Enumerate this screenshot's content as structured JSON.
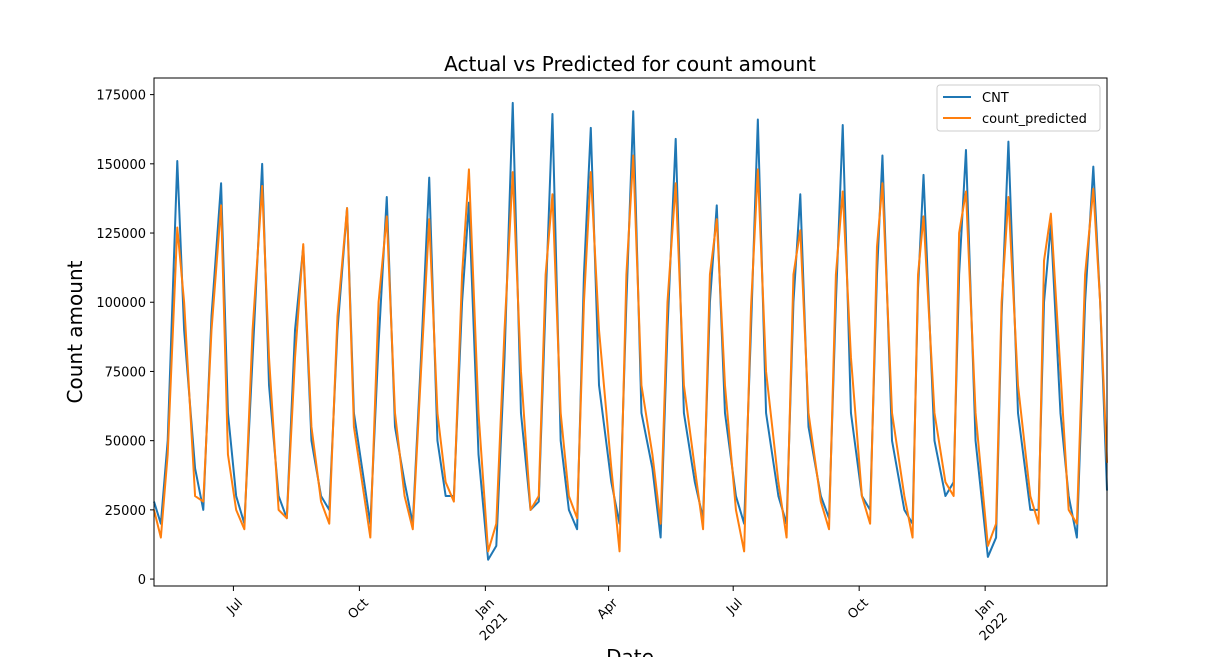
{
  "chart_data": {
    "type": "line",
    "title": "Actual vs Predicted for count amount",
    "xlabel": "Date",
    "ylabel": "Count amount",
    "xlim": [
      "2020-05-04",
      "2022-03-31"
    ],
    "xticks": [
      {
        "value": "2020-07-01",
        "label": "Jul"
      },
      {
        "value": "2020-10-01",
        "label": "Oct"
      },
      {
        "value": "2021-01-01",
        "label": "Jan",
        "year": "2021"
      },
      {
        "value": "2021-04-01",
        "label": "Apr"
      },
      {
        "value": "2021-07-01",
        "label": "Jul"
      },
      {
        "value": "2021-10-01",
        "label": "Oct"
      },
      {
        "value": "2022-01-01",
        "label": "Jan",
        "year": "2022"
      }
    ],
    "ylim": [
      -2500,
      181000
    ],
    "yticks": [
      0,
      25000,
      50000,
      75000,
      100000,
      125000,
      150000,
      175000
    ],
    "legend": "upper right",
    "x": [
      "2020-05-04",
      "2020-05-09",
      "2020-05-14",
      "2020-05-21",
      "2020-05-26",
      "2020-06-03",
      "2020-06-09",
      "2020-06-15",
      "2020-06-22",
      "2020-06-27",
      "2020-07-03",
      "2020-07-09",
      "2020-07-15",
      "2020-07-22",
      "2020-07-27",
      "2020-08-03",
      "2020-08-09",
      "2020-08-15",
      "2020-08-21",
      "2020-08-27",
      "2020-09-03",
      "2020-09-09",
      "2020-09-15",
      "2020-09-22",
      "2020-09-27",
      "2020-10-03",
      "2020-10-09",
      "2020-10-15",
      "2020-10-21",
      "2020-10-27",
      "2020-11-03",
      "2020-11-09",
      "2020-11-15",
      "2020-11-21",
      "2020-11-27",
      "2020-12-03",
      "2020-12-09",
      "2020-12-15",
      "2020-12-20",
      "2020-12-27",
      "2021-01-03",
      "2021-01-09",
      "2021-01-15",
      "2021-01-21",
      "2021-01-27",
      "2021-02-03",
      "2021-02-09",
      "2021-02-14",
      "2021-02-19",
      "2021-02-25",
      "2021-03-03",
      "2021-03-09",
      "2021-03-14",
      "2021-03-19",
      "2021-03-25",
      "2021-04-03",
      "2021-04-09",
      "2021-04-14",
      "2021-04-19",
      "2021-04-25",
      "2021-05-03",
      "2021-05-09",
      "2021-05-14",
      "2021-05-20",
      "2021-05-26",
      "2021-06-03",
      "2021-06-09",
      "2021-06-14",
      "2021-06-19",
      "2021-06-25",
      "2021-07-03",
      "2021-07-09",
      "2021-07-14",
      "2021-07-19",
      "2021-07-25",
      "2021-08-03",
      "2021-08-09",
      "2021-08-14",
      "2021-08-19",
      "2021-08-25",
      "2021-09-03",
      "2021-09-09",
      "2021-09-14",
      "2021-09-19",
      "2021-09-25",
      "2021-10-03",
      "2021-10-09",
      "2021-10-14",
      "2021-10-18",
      "2021-10-25",
      "2021-11-03",
      "2021-11-09",
      "2021-11-13",
      "2021-11-17",
      "2021-11-25",
      "2021-12-03",
      "2021-12-09",
      "2021-12-13",
      "2021-12-18",
      "2021-12-25",
      "2022-01-03",
      "2022-01-09",
      "2022-01-13",
      "2022-01-18",
      "2022-01-25",
      "2022-02-03",
      "2022-02-09",
      "2022-02-13",
      "2022-02-18",
      "2022-02-25",
      "2022-03-03",
      "2022-03-09",
      "2022-03-15",
      "2022-03-21",
      "2022-03-26",
      "2022-03-31"
    ],
    "series": [
      {
        "name": "CNT",
        "color": "#1f77b4",
        "values": [
          28000,
          20000,
          50000,
          151000,
          90000,
          40000,
          25000,
          95000,
          143000,
          60000,
          30000,
          20000,
          80000,
          150000,
          70000,
          30000,
          22000,
          90000,
          120000,
          50000,
          30000,
          25000,
          90000,
          134000,
          60000,
          40000,
          20000,
          85000,
          138000,
          55000,
          35000,
          20000,
          80000,
          145000,
          50000,
          30000,
          30000,
          100000,
          136000,
          45000,
          7000,
          12000,
          80000,
          172000,
          60000,
          25000,
          28000,
          100000,
          168000,
          50000,
          25000,
          18000,
          110000,
          163000,
          70000,
          35000,
          20000,
          100000,
          169000,
          60000,
          40000,
          15000,
          90000,
          159000,
          60000,
          35000,
          22000,
          100000,
          135000,
          60000,
          30000,
          20000,
          90000,
          166000,
          60000,
          30000,
          20000,
          100000,
          139000,
          55000,
          30000,
          22000,
          100000,
          164000,
          60000,
          30000,
          25000,
          110000,
          153000,
          50000,
          25000,
          20000,
          105000,
          146000,
          50000,
          30000,
          35000,
          110000,
          155000,
          50000,
          8000,
          15000,
          95000,
          158000,
          60000,
          25000,
          25000,
          100000,
          128000,
          60000,
          30000,
          15000,
          100000,
          149000,
          100000,
          32000
        ]
      },
      {
        "name": "count_predicted",
        "color": "#ff7f0e",
        "values": [
          25000,
          15000,
          45000,
          127000,
          100000,
          30000,
          28000,
          90000,
          135000,
          45000,
          25000,
          18000,
          90000,
          142000,
          80000,
          25000,
          22000,
          80000,
          121000,
          55000,
          28000,
          20000,
          95000,
          134000,
          55000,
          35000,
          15000,
          100000,
          131000,
          60000,
          30000,
          18000,
          75000,
          130000,
          60000,
          35000,
          28000,
          110000,
          148000,
          60000,
          10000,
          20000,
          90000,
          147000,
          75000,
          25000,
          30000,
          110000,
          139000,
          60000,
          30000,
          22000,
          100000,
          147000,
          90000,
          40000,
          10000,
          110000,
          153000,
          70000,
          45000,
          20000,
          100000,
          143000,
          70000,
          40000,
          18000,
          110000,
          130000,
          70000,
          25000,
          10000,
          98000,
          148000,
          75000,
          35000,
          15000,
          110000,
          126000,
          60000,
          28000,
          18000,
          110000,
          140000,
          80000,
          30000,
          20000,
          120000,
          143000,
          60000,
          30000,
          15000,
          110000,
          131000,
          60000,
          35000,
          30000,
          125000,
          140000,
          60000,
          12000,
          20000,
          100000,
          138000,
          70000,
          30000,
          20000,
          115000,
          132000,
          75000,
          25000,
          20000,
          110000,
          141000,
          100000,
          42000
        ]
      }
    ]
  }
}
